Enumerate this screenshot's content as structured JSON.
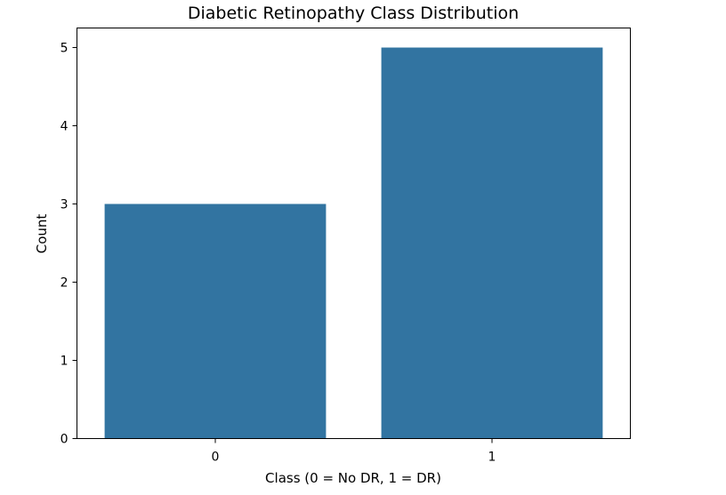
{
  "chart_data": {
    "type": "bar",
    "title": "Diabetic Retinopathy Class Distribution",
    "xlabel": "Class (0 = No DR, 1 = DR)",
    "ylabel": "Count",
    "categories": [
      "0",
      "1"
    ],
    "values": [
      3,
      5
    ],
    "ylim": [
      0,
      5.25
    ],
    "yticks": [
      0,
      1,
      2,
      3,
      4,
      5
    ],
    "grid": false,
    "bar_color": "#3274a1"
  }
}
